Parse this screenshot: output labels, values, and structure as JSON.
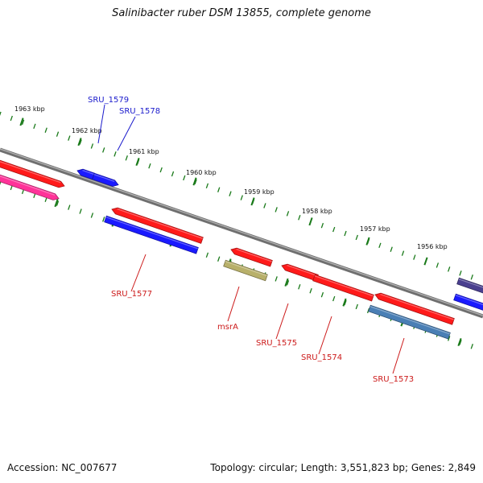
{
  "title": "Salinibacter ruber DSM 13855, complete genome",
  "footer": {
    "accession": "Accession: NC_007677",
    "summary": "Topology: circular; Length: 3,551,823 bp; Genes: 2,849"
  },
  "scale_labels": [
    "1963 kbp",
    "1962 kbp",
    "1961 kbp",
    "1960 kbp",
    "1959 kbp",
    "1958 kbp",
    "1957 kbp",
    "1956 kbp"
  ],
  "colors": {
    "backbone": "#7a7a7a",
    "tick": "#1a7a1a",
    "red": "#ff1a1a",
    "blue": "#1a1aff",
    "pink": "#ff3399",
    "olive": "#b8b06a",
    "steel": "#4a7fb5",
    "navy": "#4a3f8f",
    "label_blue": "#1a1acc",
    "label_red": "#cc1a1a"
  },
  "gene_labels": [
    {
      "name": "SRU_1579",
      "color": "label_blue"
    },
    {
      "name": "SRU_1578",
      "color": "label_blue"
    },
    {
      "name": "SRU_1577",
      "color": "label_red"
    },
    {
      "name": "msrA",
      "color": "label_red"
    },
    {
      "name": "SRU_1575",
      "color": "label_red"
    },
    {
      "name": "SRU_1574",
      "color": "label_red"
    },
    {
      "name": "SRU_1573",
      "color": "label_red"
    }
  ],
  "features": [
    {
      "id": "f1",
      "color": "red"
    },
    {
      "id": "f2",
      "color": "pink"
    },
    {
      "id": "f3",
      "color": "blue"
    },
    {
      "id": "f4",
      "color": "blue"
    },
    {
      "id": "f5",
      "color": "red"
    },
    {
      "id": "f6",
      "color": "blue"
    },
    {
      "id": "f7",
      "color": "red"
    },
    {
      "id": "f8",
      "color": "olive"
    },
    {
      "id": "f9",
      "color": "red"
    },
    {
      "id": "f10",
      "color": "red"
    },
    {
      "id": "f11",
      "color": "red"
    },
    {
      "id": "f12",
      "color": "steel"
    },
    {
      "id": "f13",
      "color": "navy"
    },
    {
      "id": "f14",
      "color": "blue"
    }
  ]
}
